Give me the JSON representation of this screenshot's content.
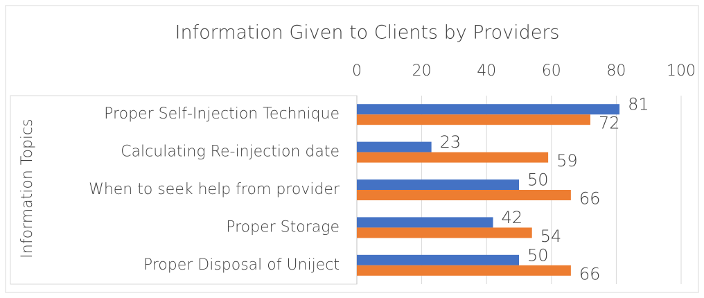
{
  "chart_data": {
    "type": "hbar",
    "title": "Information Given to Clients by Providers",
    "y_label": "Information Topics",
    "categories": [
      "Proper Self-Injection Technique",
      "Calculating Re-injection date",
      "When to seek help from provider",
      "Proper Storage",
      "Proper Disposal of Uniject"
    ],
    "series": [
      {
        "color": "#4472c4",
        "values": [
          81,
          23,
          50,
          42,
          50
        ]
      },
      {
        "color": "#ed7d31",
        "values": [
          72,
          59,
          66,
          54,
          66
        ]
      }
    ],
    "xlim": [
      0,
      100
    ],
    "xticks": [
      0,
      20,
      40,
      60,
      80,
      100
    ],
    "grid": true,
    "x_axis_position": "top"
  }
}
